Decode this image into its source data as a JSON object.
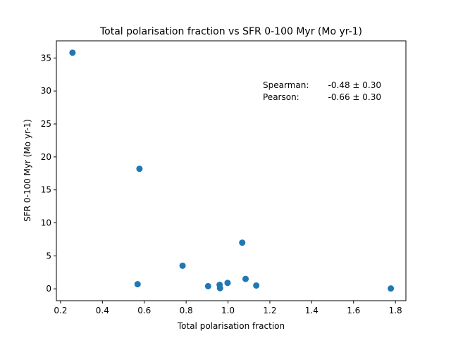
{
  "chart_data": {
    "type": "scatter",
    "title": "Total polarisation fraction vs SFR 0-100 Myr (Mo yr-1)",
    "xlabel": "Total polarisation fraction",
    "ylabel": "SFR 0-100 Myr (Mo yr-1)",
    "xlim": [
      0.18,
      1.85
    ],
    "ylim": [
      -1.8,
      37.6
    ],
    "xticks": [
      0.2,
      0.4,
      0.6,
      0.8,
      1.0,
      1.2,
      1.4,
      1.6,
      1.8
    ],
    "xtick_labels": [
      "0.2",
      "0.4",
      "0.6",
      "0.8",
      "1.0",
      "1.2",
      "1.4",
      "1.6",
      "1.8"
    ],
    "yticks": [
      0,
      5,
      10,
      15,
      20,
      25,
      30,
      35
    ],
    "ytick_labels": [
      "0",
      "5",
      "10",
      "15",
      "20",
      "25",
      "30",
      "35"
    ],
    "marker_color": "#1f77b4",
    "grid": false,
    "points": [
      {
        "x": 0.257,
        "y": 35.8
      },
      {
        "x": 0.577,
        "y": 18.2
      },
      {
        "x": 0.568,
        "y": 0.7
      },
      {
        "x": 0.783,
        "y": 3.5
      },
      {
        "x": 0.905,
        "y": 0.4
      },
      {
        "x": 0.96,
        "y": 0.6
      },
      {
        "x": 0.962,
        "y": 0.1
      },
      {
        "x": 0.998,
        "y": 0.9
      },
      {
        "x": 1.068,
        "y": 7.0
      },
      {
        "x": 1.084,
        "y": 1.5
      },
      {
        "x": 1.135,
        "y": 0.5
      },
      {
        "x": 1.778,
        "y": 0.05
      }
    ],
    "annotations": [
      {
        "label": "Spearman:",
        "value": "-0.48 ± 0.30"
      },
      {
        "label": "Pearson:",
        "value": "-0.66 ± 0.30"
      }
    ]
  }
}
